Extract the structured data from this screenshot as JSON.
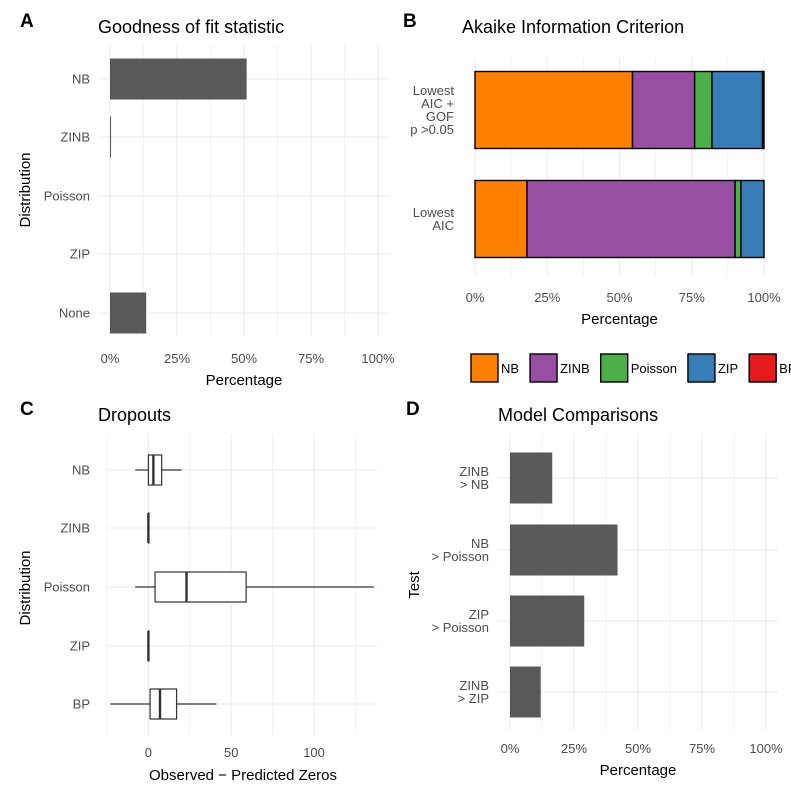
{
  "chart_data": [
    {
      "panel_label": "A",
      "type": "bar",
      "orientation": "horizontal",
      "title": "Goodness of fit statistic",
      "xlabel": "Percentage",
      "ylabel": "Distribution",
      "categories": [
        "NB",
        "ZINB",
        "Poisson",
        "ZIP",
        "None"
      ],
      "values": [
        51,
        0.4,
        0,
        0,
        13.5
      ],
      "xlim": [
        0,
        100
      ],
      "xticks": [
        "0%",
        "25%",
        "50%",
        "75%",
        "100%"
      ],
      "grid": true,
      "bar_color": "#595959"
    },
    {
      "panel_label": "B",
      "type": "bar",
      "orientation": "horizontal",
      "stacked": true,
      "title": "Akaike Information Criterion",
      "xlabel": "Percentage",
      "ylabel": "",
      "categories": [
        "Lowest\nAIC +\nGOF\np >0.05",
        "Lowest\nAIC"
      ],
      "series": [
        {
          "name": "NB",
          "color": "#FF7F00",
          "values": [
            54.5,
            18
          ]
        },
        {
          "name": "ZINB",
          "color": "#984EA3",
          "values": [
            21.5,
            72
          ]
        },
        {
          "name": "Poisson",
          "color": "#4DAF4A",
          "values": [
            6,
            2
          ]
        },
        {
          "name": "ZIP",
          "color": "#377EB8",
          "values": [
            17.5,
            8
          ]
        },
        {
          "name": "BP",
          "color": "#E41A1C",
          "values": [
            0.5,
            0
          ]
        }
      ],
      "xlim": [
        0,
        100
      ],
      "xticks": [
        "0%",
        "25%",
        "50%",
        "75%",
        "100%"
      ],
      "legend_position": "bottom",
      "grid": true
    },
    {
      "panel_label": "C",
      "type": "box",
      "orientation": "horizontal",
      "title": "Dropouts",
      "xlabel": "Observed − Predicted Zeros",
      "ylabel": "Distribution",
      "categories": [
        "NB",
        "ZINB",
        "Poisson",
        "ZIP",
        "BP"
      ],
      "boxes": [
        {
          "min": -8,
          "q1": 0,
          "median": 3,
          "q3": 8,
          "max": 20
        },
        {
          "min": 0,
          "q1": 0,
          "median": 0,
          "q3": 0,
          "max": 0
        },
        {
          "min": -8,
          "q1": 4,
          "median": 23,
          "q3": 59,
          "max": 136
        },
        {
          "min": 0,
          "q1": 0,
          "median": 0,
          "q3": 0,
          "max": 0
        },
        {
          "min": -23,
          "q1": 1,
          "median": 7,
          "q3": 17,
          "max": 41
        }
      ],
      "xlim": [
        -25,
        138
      ],
      "xticks": [
        0,
        50,
        100
      ],
      "grid": true
    },
    {
      "panel_label": "D",
      "type": "bar",
      "orientation": "horizontal",
      "title": "Model Comparisons",
      "xlabel": "Percentage",
      "ylabel": "Test",
      "categories": [
        "ZINB\n> NB",
        "NB\n> Poisson",
        "ZIP\n> Poisson",
        "ZINB\n> ZIP"
      ],
      "values": [
        16.5,
        42,
        29,
        12
      ],
      "xlim": [
        0,
        100
      ],
      "xticks": [
        "0%",
        "25%",
        "50%",
        "75%",
        "100%"
      ],
      "grid": true,
      "bar_color": "#595959"
    }
  ]
}
